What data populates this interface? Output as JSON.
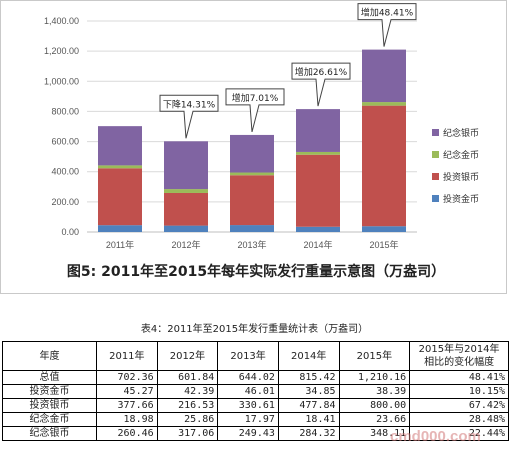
{
  "chart_data": {
    "type": "bar",
    "stacked": true,
    "title": "图5: 2011年至2015年每年实际发行重量示意图（万盎司）",
    "categories": [
      "2011年",
      "2012年",
      "2013年",
      "2014年",
      "2015年"
    ],
    "series": [
      {
        "name": "投资金币",
        "values": [
          45.27,
          42.39,
          46.01,
          34.85,
          38.39
        ],
        "color": "#4f81bd"
      },
      {
        "name": "投资银币",
        "values": [
          377.66,
          216.53,
          330.61,
          477.84,
          800.0
        ],
        "color": "#c0504d"
      },
      {
        "name": "纪念金币",
        "values": [
          18.98,
          25.86,
          17.97,
          18.41,
          23.66
        ],
        "color": "#9bbb59"
      },
      {
        "name": "纪念银币",
        "values": [
          260.46,
          317.06,
          249.43,
          284.32,
          348.11
        ],
        "color": "#8064a2"
      }
    ],
    "yticks": [
      "0.00",
      "200.00",
      "400.00",
      "600.00",
      "800.00",
      "1,000.00",
      "1,200.00",
      "1,400.00"
    ],
    "ylim": [
      0,
      1400
    ],
    "grid": true,
    "legend_position": "right",
    "annotations": [
      {
        "category": "2012年",
        "text": "下降14.31%"
      },
      {
        "category": "2013年",
        "text": "增加7.01%"
      },
      {
        "category": "2014年",
        "text": "增加26.61%"
      },
      {
        "category": "2015年",
        "text": "增加48.41%"
      }
    ]
  },
  "table": {
    "caption": "表4：2011年至2015年发行重量统计表（万盎司）",
    "headers": [
      "年度",
      "2011年",
      "2012年",
      "2013年",
      "2014年",
      "2015年",
      "2015年与2014年相比的变化幅度"
    ],
    "header_last_line1": "2015年与2014年",
    "header_last_line2": "相比的变化幅度",
    "rows": [
      [
        "总值",
        "702.36",
        "601.84",
        "644.02",
        "815.42",
        "1,210.16",
        "48.41%"
      ],
      [
        "投资金币",
        "45.27",
        "42.39",
        "46.01",
        "34.85",
        "38.39",
        "10.15%"
      ],
      [
        "投资银币",
        "377.66",
        "216.53",
        "330.61",
        "477.84",
        "800.00",
        "67.42%"
      ],
      [
        "纪念金币",
        "18.98",
        "25.86",
        "17.97",
        "18.41",
        "23.66",
        "28.48%"
      ],
      [
        "纪念银币",
        "260.46",
        "317.06",
        "249.43",
        "284.32",
        "348.11",
        "22.44%"
      ]
    ]
  },
  "watermark": "cmd000.com"
}
